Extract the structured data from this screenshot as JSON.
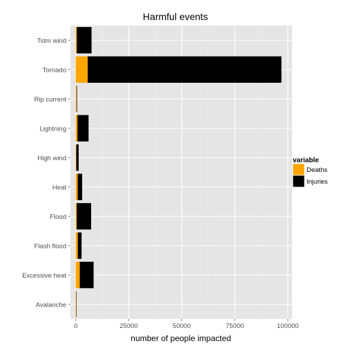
{
  "chart_data": {
    "type": "bar",
    "orientation": "horizontal",
    "stacked": true,
    "title": "Harmful events",
    "xlabel": "number of people impacted",
    "ylabel": "",
    "categories": [
      "Avalanche",
      "Excessive heat",
      "Flash flood",
      "Heat",
      "High wind",
      "Flood",
      "Lightning",
      "Rip current",
      "Tornado",
      "Tstm wind"
    ],
    "category_order_top_to_bottom": [
      "Tstm wind",
      "Tornado",
      "Rip current",
      "Lightning",
      "High wind",
      "Heat",
      "Flood",
      "Flash flood",
      "Excessive heat",
      "Avalanche"
    ],
    "series": [
      {
        "name": "Deaths",
        "color": "#FFA500",
        "values": {
          "Tstm wind": 504,
          "Tornado": 5633,
          "Rip current": 368,
          "Lightning": 816,
          "High wind": 248,
          "Heat": 937,
          "Flood": 470,
          "Flash flood": 978,
          "Excessive heat": 1903,
          "Avalanche": 224
        }
      },
      {
        "name": "Injuries",
        "color": "#000000",
        "values": {
          "Tstm wind": 6957,
          "Tornado": 91346,
          "Rip current": 232,
          "Lightning": 5230,
          "High wind": 1137,
          "Heat": 2100,
          "Flood": 6789,
          "Flash flood": 1777,
          "Excessive heat": 6525,
          "Avalanche": 170
        }
      }
    ],
    "xlim": [
      -2500,
      102000
    ],
    "xticks": [
      0,
      25000,
      50000,
      75000,
      100000
    ],
    "xtick_labels": [
      "0",
      "25000",
      "50000",
      "75000",
      "100000"
    ],
    "grid": true,
    "panel_background": "#E5E5E5",
    "legend": {
      "title": "variable",
      "placement": "right",
      "entries": [
        "Deaths",
        "Injuries"
      ]
    }
  }
}
